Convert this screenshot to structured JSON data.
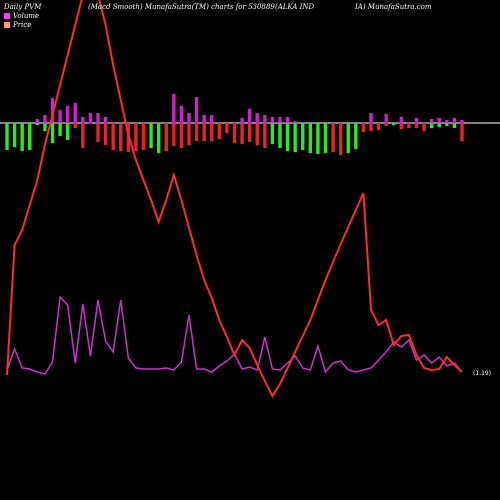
{
  "header": {
    "left": "Daily PVM",
    "center": "(Macd Smooth) MunafaSutra(TM) charts for 530889",
    "right1": "(ALKA IND",
    "right2": "IA) MunafaSutra.com"
  },
  "legend": {
    "volume_label": "Volume",
    "price_label": "Price",
    "volume_color": "#ff33ff",
    "price_color": "#ff9966"
  },
  "colors": {
    "macd_line": "#ff2a2a",
    "volume_line": "#cc33cc",
    "bar_positive": "#cc22cc",
    "bar_negative_green": "#22ee22",
    "bar_negative_red": "#ee2222",
    "zero_line": "#ffffff",
    "background": "#000000"
  },
  "chart_data": {
    "type": "line",
    "title": "(Macd Smooth) MunafaSutra(TM) charts for 530889",
    "xlabel": "",
    "ylabel": "",
    "end_label": "(1.19)",
    "x": [
      1,
      2,
      3,
      4,
      5,
      6,
      7,
      8,
      9,
      10,
      11,
      12,
      13,
      14,
      15,
      16,
      17,
      18,
      19,
      20,
      21,
      22,
      23,
      24,
      25,
      26,
      27,
      28,
      29,
      30,
      31,
      32,
      33,
      34,
      35,
      36,
      37,
      38,
      39,
      40,
      41,
      42,
      43,
      44,
      45,
      46,
      47,
      48,
      49,
      50,
      51,
      52,
      53,
      54,
      55,
      56,
      57,
      58,
      59,
      60,
      61
    ],
    "series": [
      {
        "name": "MACD",
        "values": [
          375,
          245,
          230,
          205,
          180,
          145,
          115,
          85,
          55,
          25,
          -5,
          -30,
          -5,
          25,
          65,
          100,
          135,
          160,
          180,
          200,
          222,
          200,
          175,
          200,
          228,
          255,
          280,
          298,
          320,
          337,
          355,
          340,
          348,
          365,
          381,
          396,
          384,
          368,
          352,
          336,
          320,
          300,
          280,
          262,
          244,
          227,
          210,
          193,
          310,
          325,
          320,
          345,
          336,
          335,
          355,
          368,
          370,
          369,
          357,
          365,
          372
        ]
      },
      {
        "name": "Volume",
        "values": [
          370,
          349,
          368,
          369,
          372,
          374,
          362,
          297,
          305,
          363,
          304,
          356,
          300,
          341,
          352,
          300,
          358,
          368,
          369,
          369,
          369,
          368,
          370,
          362,
          315,
          369,
          369,
          372,
          366,
          361,
          354,
          369,
          367,
          370,
          337,
          369,
          370,
          363,
          356,
          368,
          370,
          346,
          372,
          363,
          361,
          370,
          372,
          370,
          368,
          360,
          352,
          342,
          347,
          340,
          360,
          355,
          363,
          357,
          366,
          363,
          372
        ]
      }
    ],
    "histogram": {
      "values": [
        -27,
        -24,
        -28,
        -27,
        -2,
        -8,
        20,
        13,
        17,
        -5,
        -25,
        -1,
        -19,
        -22,
        -27,
        -28,
        -29,
        -28,
        -27,
        -25,
        -30,
        -28,
        -23,
        -25,
        -22,
        -18,
        -18,
        -18,
        -16,
        -10,
        -20,
        -21,
        -19,
        -22,
        -25,
        -21,
        -25,
        -28,
        -29,
        -27,
        -30,
        -31,
        -30,
        -29,
        -32,
        -30,
        -26,
        -9,
        -8,
        -7,
        -3,
        -2,
        -6,
        -5,
        -5,
        -8,
        -5,
        -4,
        -3,
        -5,
        -18
      ],
      "colors": [
        "green",
        "green",
        "green",
        "green",
        "green",
        "green",
        "green",
        "green",
        "green",
        "red",
        "red",
        "red",
        "red",
        "red",
        "red",
        "red",
        "red",
        "red",
        "red",
        "green",
        "green",
        "red",
        "red",
        "red",
        "red",
        "red",
        "red",
        "red",
        "red",
        "red",
        "red",
        "red",
        "red",
        "red",
        "red",
        "green",
        "green",
        "green",
        "green",
        "green",
        "green",
        "green",
        "green",
        "red",
        "red",
        "green",
        "green",
        "red",
        "red",
        "red",
        "red",
        "green",
        "red",
        "red",
        "red",
        "red",
        "green",
        "green",
        "green",
        "green",
        "red"
      ],
      "pos_heights": [
        0,
        0,
        0,
        0,
        4,
        8,
        25,
        13,
        17,
        20,
        6,
        10,
        10,
        6,
        0,
        0,
        0,
        0,
        0,
        0,
        0,
        0,
        29,
        17,
        10,
        26,
        8,
        8,
        0,
        0,
        0,
        5,
        14,
        10,
        8,
        6,
        6,
        6,
        2,
        0,
        0,
        0,
        0,
        0,
        0,
        0,
        0,
        0,
        10,
        0,
        9,
        0,
        6,
        0,
        5,
        0,
        4,
        5,
        3,
        5,
        3
      ]
    }
  }
}
